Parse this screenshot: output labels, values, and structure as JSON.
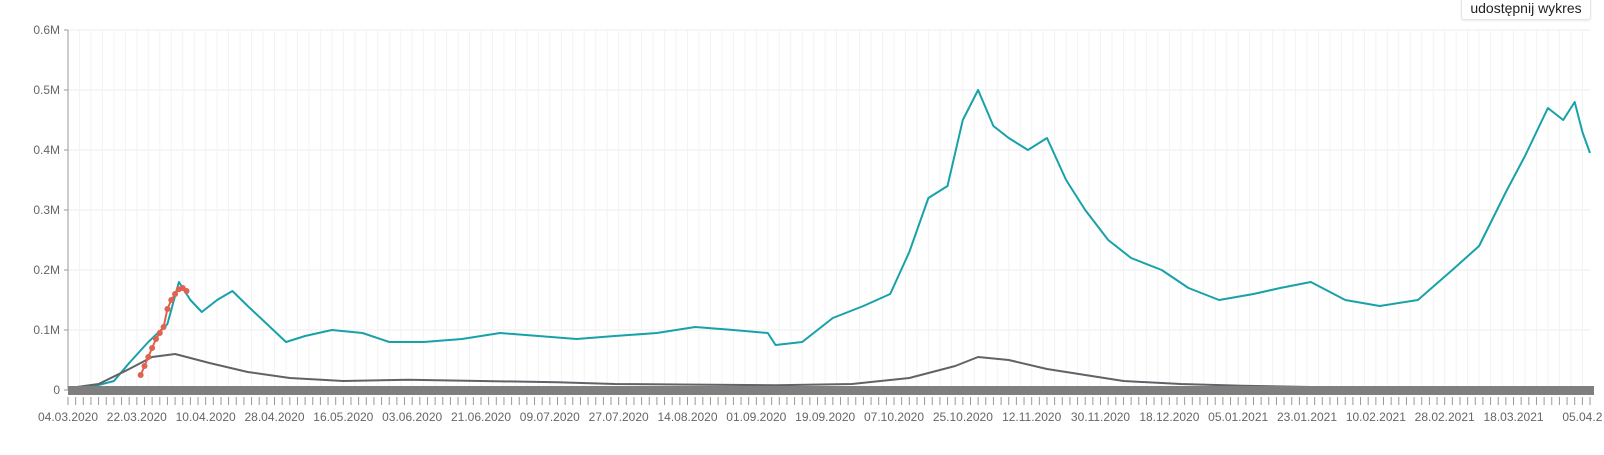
{
  "share_button": {
    "label": "udostępnij wykres"
  },
  "colors": {
    "teal": "#17a2a9",
    "gray": "#5f6368",
    "red": "#e06352",
    "scrollbar": "#7f7f7f",
    "grid": "#eeeeee"
  },
  "chart_data": {
    "type": "line",
    "title": "",
    "xlabel": "",
    "ylabel": "",
    "ylim": [
      0,
      600000
    ],
    "y_tick_labels": [
      "0",
      "0.1M",
      "0.2M",
      "0.3M",
      "0.4M",
      "0.5M",
      "0.6M"
    ],
    "x_tick_labels": [
      "04.03.2020",
      "22.03.2020",
      "10.04.2020",
      "28.04.2020",
      "16.05.2020",
      "03.06.2020",
      "21.06.2020",
      "09.07.2020",
      "27.07.2020",
      "14.08.2020",
      "01.09.2020",
      "19.09.2020",
      "07.10.2020",
      "25.10.2020",
      "12.11.2020",
      "30.11.2020",
      "18.12.2020",
      "05.01.2021",
      "23.01.2021",
      "10.02.2021",
      "28.02.2021",
      "18.03.2021",
      "05.04.2"
    ],
    "x_range": [
      "04.03.2020",
      "06.04.2021"
    ],
    "grid": true,
    "legend": "none",
    "series": [
      {
        "color": "teal",
        "x": [
          "2020-03-04",
          "2020-03-10",
          "2020-03-16",
          "2020-03-20",
          "2020-03-25",
          "2020-03-30",
          "2020-04-02",
          "2020-04-05",
          "2020-04-08",
          "2020-04-12",
          "2020-04-16",
          "2020-04-20",
          "2020-04-25",
          "2020-04-30",
          "2020-05-05",
          "2020-05-12",
          "2020-05-20",
          "2020-05-27",
          "2020-06-05",
          "2020-06-15",
          "2020-06-25",
          "2020-07-05",
          "2020-07-15",
          "2020-07-25",
          "2020-08-05",
          "2020-08-15",
          "2020-08-25",
          "2020-09-03",
          "2020-09-05",
          "2020-09-12",
          "2020-09-20",
          "2020-09-28",
          "2020-10-05",
          "2020-10-10",
          "2020-10-15",
          "2020-10-20",
          "2020-10-24",
          "2020-10-28",
          "2020-11-01",
          "2020-11-05",
          "2020-11-10",
          "2020-11-15",
          "2020-11-20",
          "2020-11-25",
          "2020-12-01",
          "2020-12-07",
          "2020-12-15",
          "2020-12-22",
          "2020-12-30",
          "2021-01-08",
          "2021-01-15",
          "2021-01-23",
          "2021-02-01",
          "2021-02-10",
          "2021-02-20",
          "2021-03-01",
          "2021-03-08",
          "2021-03-15",
          "2021-03-20",
          "2021-03-26",
          "2021-03-30",
          "2021-04-02",
          "2021-04-04",
          "2021-04-06"
        ],
        "y": [
          3000,
          5000,
          15000,
          45000,
          80000,
          110000,
          180000,
          150000,
          130000,
          150000,
          165000,
          140000,
          110000,
          80000,
          90000,
          100000,
          95000,
          80000,
          80000,
          85000,
          95000,
          90000,
          85000,
          90000,
          95000,
          105000,
          100000,
          95000,
          75000,
          80000,
          120000,
          140000,
          160000,
          230000,
          320000,
          340000,
          450000,
          500000,
          440000,
          420000,
          400000,
          420000,
          350000,
          300000,
          250000,
          220000,
          200000,
          170000,
          150000,
          160000,
          170000,
          180000,
          150000,
          140000,
          150000,
          200000,
          240000,
          330000,
          390000,
          470000,
          450000,
          480000,
          430000,
          395000
        ]
      },
      {
        "color": "gray",
        "x": [
          "2020-03-04",
          "2020-03-12",
          "2020-03-20",
          "2020-03-26",
          "2020-04-01",
          "2020-04-10",
          "2020-04-20",
          "2020-05-01",
          "2020-05-15",
          "2020-06-01",
          "2020-06-20",
          "2020-07-10",
          "2020-07-25",
          "2020-08-15",
          "2020-09-05",
          "2020-09-25",
          "2020-10-10",
          "2020-10-22",
          "2020-10-28",
          "2020-11-05",
          "2020-11-15",
          "2020-11-25",
          "2020-12-05",
          "2020-12-20",
          "2021-01-05",
          "2021-01-23",
          "2021-01-28"
        ],
        "y": [
          3000,
          10000,
          35000,
          55000,
          60000,
          45000,
          30000,
          20000,
          15000,
          17000,
          15000,
          13000,
          10000,
          9000,
          8000,
          10000,
          20000,
          40000,
          55000,
          50000,
          35000,
          25000,
          15000,
          10000,
          7000,
          5000,
          5000
        ]
      },
      {
        "color": "red",
        "x": [
          "2020-03-23",
          "2020-03-24",
          "2020-03-25",
          "2020-03-26",
          "2020-03-27",
          "2020-03-28",
          "2020-03-29",
          "2020-03-30",
          "2020-03-31",
          "2020-04-01",
          "2020-04-02",
          "2020-04-03",
          "2020-04-04"
        ],
        "y": [
          25000,
          40000,
          55000,
          70000,
          85000,
          95000,
          105000,
          135000,
          150000,
          160000,
          168000,
          170000,
          165000
        ]
      }
    ]
  }
}
